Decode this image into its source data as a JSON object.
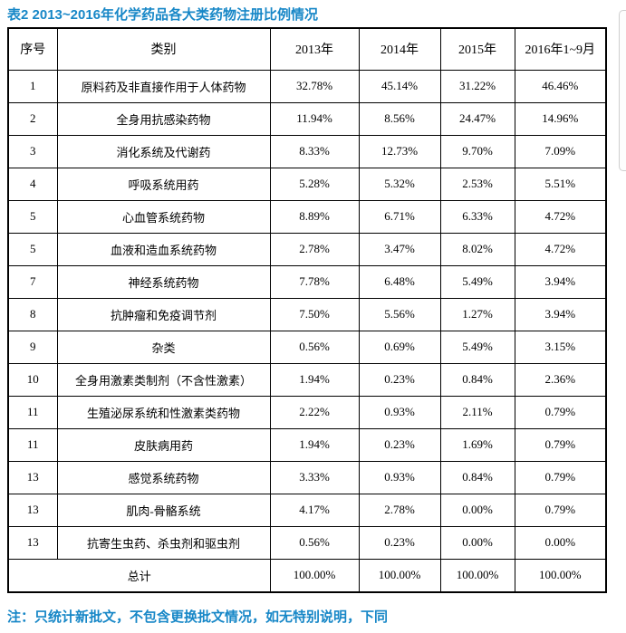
{
  "title": "表2 2013~2016年化学药品各大类药物注册比例情况",
  "note": "注：只统计新批文，不包含更换批文情况，如无特别说明，下同",
  "colors": {
    "accent": "#1787c7",
    "table_border": "#000000",
    "background": "#ffffff"
  },
  "table": {
    "headers": [
      "序号",
      "类别",
      "2013年",
      "2014年",
      "2015年",
      "2016年1~9月"
    ],
    "rows": [
      [
        "1",
        "原料药及非直接作用于人体药物",
        "32.78%",
        "45.14%",
        "31.22%",
        "46.46%"
      ],
      [
        "2",
        "全身用抗感染药物",
        "11.94%",
        "8.56%",
        "24.47%",
        "14.96%"
      ],
      [
        "3",
        "消化系统及代谢药",
        "8.33%",
        "12.73%",
        "9.70%",
        "7.09%"
      ],
      [
        "4",
        "呼吸系统用药",
        "5.28%",
        "5.32%",
        "2.53%",
        "5.51%"
      ],
      [
        "5",
        "心血管系统药物",
        "8.89%",
        "6.71%",
        "6.33%",
        "4.72%"
      ],
      [
        "5",
        "血液和造血系统药物",
        "2.78%",
        "3.47%",
        "8.02%",
        "4.72%"
      ],
      [
        "7",
        "神经系统药物",
        "7.78%",
        "6.48%",
        "5.49%",
        "3.94%"
      ],
      [
        "8",
        "抗肿瘤和免疫调节剂",
        "7.50%",
        "5.56%",
        "1.27%",
        "3.94%"
      ],
      [
        "9",
        "杂类",
        "0.56%",
        "0.69%",
        "5.49%",
        "3.15%"
      ],
      [
        "10",
        "全身用激素类制剂（不含性激素）",
        "1.94%",
        "0.23%",
        "0.84%",
        "2.36%"
      ],
      [
        "11",
        "生殖泌尿系统和性激素类药物",
        "2.22%",
        "0.93%",
        "2.11%",
        "0.79%"
      ],
      [
        "11",
        "皮肤病用药",
        "1.94%",
        "0.23%",
        "1.69%",
        "0.79%"
      ],
      [
        "13",
        "感觉系统药物",
        "3.33%",
        "0.93%",
        "0.84%",
        "0.79%"
      ],
      [
        "13",
        "肌肉-骨骼系统",
        "4.17%",
        "2.78%",
        "0.00%",
        "0.79%"
      ],
      [
        "13",
        "抗寄生虫药、杀虫剂和驱虫剂",
        "0.56%",
        "0.23%",
        "0.00%",
        "0.00%"
      ]
    ],
    "total_row": {
      "label": "总计",
      "values": [
        "100.00%",
        "100.00%",
        "100.00%",
        "100.00%"
      ]
    }
  }
}
